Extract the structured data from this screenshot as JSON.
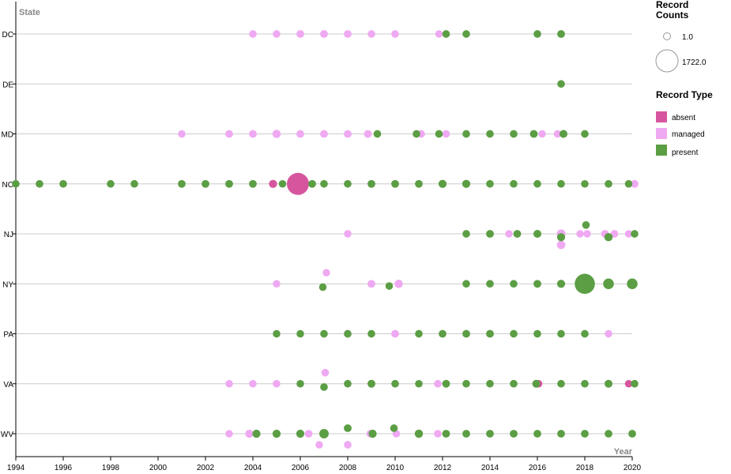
{
  "chart_data": {
    "type": "scatter",
    "x_axis_title": "Year",
    "y_axis_title": "State",
    "xlim": [
      1994,
      2020
    ],
    "x_ticks": [
      "1994",
      "1996",
      "1998",
      "2000",
      "2002",
      "2004",
      "2006",
      "2008",
      "2010",
      "2012",
      "2014",
      "2016",
      "2018",
      "2020"
    ],
    "categories": [
      "DC",
      "DE",
      "MD",
      "NC",
      "NJ",
      "NY",
      "PA",
      "VA",
      "WV"
    ],
    "size_legend": {
      "title": "Record Counts",
      "entries": [
        {
          "label": "1.0",
          "value": 1
        },
        {
          "label": "1722.0",
          "value": 1722
        }
      ]
    },
    "color_legend": {
      "title": "Record Type",
      "entries": [
        {
          "label": "absent",
          "color": "#d6569e"
        },
        {
          "label": "managed",
          "color": "#efa9f2"
        },
        {
          "label": "present",
          "color": "#5b9e44"
        }
      ]
    },
    "series": [
      {
        "name": "absent",
        "color": "#d6569e",
        "points": [
          {
            "x": 2004.85,
            "y": "NC",
            "count": 60
          },
          {
            "x": 2005.9,
            "y": "NC",
            "count": 1722
          },
          {
            "x": 2016.05,
            "y": "VA",
            "count": 25
          },
          {
            "x": 2019.85,
            "y": "VA",
            "count": 25
          }
        ]
      },
      {
        "name": "managed",
        "color": "#efa9f2",
        "points": [
          {
            "x": 2004,
            "y": "DC",
            "count": 30
          },
          {
            "x": 2005,
            "y": "DC",
            "count": 30
          },
          {
            "x": 2006,
            "y": "DC",
            "count": 40
          },
          {
            "x": 2007,
            "y": "DC",
            "count": 40
          },
          {
            "x": 2008,
            "y": "DC",
            "count": 40
          },
          {
            "x": 2009,
            "y": "DC",
            "count": 30
          },
          {
            "x": 2010,
            "y": "DC",
            "count": 30
          },
          {
            "x": 2011.85,
            "y": "DC",
            "count": 20
          },
          {
            "x": 2001,
            "y": "MD",
            "count": 25
          },
          {
            "x": 2003,
            "y": "MD",
            "count": 40
          },
          {
            "x": 2004,
            "y": "MD",
            "count": 40
          },
          {
            "x": 2005,
            "y": "MD",
            "count": 70
          },
          {
            "x": 2006,
            "y": "MD",
            "count": 40
          },
          {
            "x": 2007,
            "y": "MD",
            "count": 40
          },
          {
            "x": 2008,
            "y": "MD",
            "count": 40
          },
          {
            "x": 2008.85,
            "y": "MD",
            "count": 40
          },
          {
            "x": 2011.1,
            "y": "MD",
            "count": 30
          },
          {
            "x": 2012.15,
            "y": "MD",
            "count": 30
          },
          {
            "x": 2016.2,
            "y": "MD",
            "count": 20
          },
          {
            "x": 2016.85,
            "y": "MD",
            "count": 20
          },
          {
            "x": 2020.1,
            "y": "NC",
            "count": 35
          },
          {
            "x": 2008,
            "y": "NJ",
            "count": 25
          },
          {
            "x": 2014.8,
            "y": "NJ",
            "count": 20
          },
          {
            "x": 2017,
            "y": "NJ",
            "count": 110
          },
          {
            "x": 2017,
            "y": "NJ",
            "count": 85,
            "offset": 1
          },
          {
            "x": 2017.8,
            "y": "NJ",
            "count": 20
          },
          {
            "x": 2018.1,
            "y": "NJ",
            "count": 20
          },
          {
            "x": 2018.85,
            "y": "NJ",
            "count": 40
          },
          {
            "x": 2019.25,
            "y": "NJ",
            "count": 30
          },
          {
            "x": 2019.85,
            "y": "NJ",
            "count": 25
          },
          {
            "x": 2005,
            "y": "NY",
            "count": 25
          },
          {
            "x": 2007.1,
            "y": "NY",
            "count": 20,
            "offset": -1
          },
          {
            "x": 2009,
            "y": "NY",
            "count": 40
          },
          {
            "x": 2010.15,
            "y": "NY",
            "count": 70
          },
          {
            "x": 2008,
            "y": "PA",
            "count": 35
          },
          {
            "x": 2010,
            "y": "PA",
            "count": 35
          },
          {
            "x": 2019,
            "y": "PA",
            "count": 25
          },
          {
            "x": 2003,
            "y": "VA",
            "count": 25
          },
          {
            "x": 2004,
            "y": "VA",
            "count": 25
          },
          {
            "x": 2005,
            "y": "VA",
            "count": 30
          },
          {
            "x": 2007.05,
            "y": "VA",
            "count": 30,
            "offset": -1
          },
          {
            "x": 2011.8,
            "y": "VA",
            "count": 30
          },
          {
            "x": 2003,
            "y": "WV",
            "count": 25
          },
          {
            "x": 2003.85,
            "y": "WV",
            "count": 60
          },
          {
            "x": 2006.35,
            "y": "WV",
            "count": 40
          },
          {
            "x": 2006.8,
            "y": "WV",
            "count": 20,
            "offset": 1
          },
          {
            "x": 2008.95,
            "y": "WV",
            "count": 30
          },
          {
            "x": 2008,
            "y": "WV",
            "count": 30,
            "offset": 1
          },
          {
            "x": 2010.05,
            "y": "WV",
            "count": 25
          },
          {
            "x": 2011.8,
            "y": "WV",
            "count": 25
          }
        ]
      },
      {
        "name": "present",
        "color": "#5b9e44",
        "points": [
          {
            "x": 2012.15,
            "y": "DC",
            "count": 30
          },
          {
            "x": 2013,
            "y": "DC",
            "count": 30
          },
          {
            "x": 2016,
            "y": "DC",
            "count": 30
          },
          {
            "x": 2017,
            "y": "DC",
            "count": 40
          },
          {
            "x": 2017,
            "y": "DE",
            "count": 30
          },
          {
            "x": 2009.25,
            "y": "MD",
            "count": 30
          },
          {
            "x": 2010.9,
            "y": "MD",
            "count": 30
          },
          {
            "x": 2011.85,
            "y": "MD",
            "count": 30
          },
          {
            "x": 2013,
            "y": "MD",
            "count": 30
          },
          {
            "x": 2014,
            "y": "MD",
            "count": 30
          },
          {
            "x": 2015,
            "y": "MD",
            "count": 30
          },
          {
            "x": 2015.85,
            "y": "MD",
            "count": 40
          },
          {
            "x": 2017.1,
            "y": "MD",
            "count": 50
          },
          {
            "x": 2018,
            "y": "MD",
            "count": 30
          },
          {
            "x": 1994,
            "y": "NC",
            "count": 30
          },
          {
            "x": 1995,
            "y": "NC",
            "count": 30
          },
          {
            "x": 1996,
            "y": "NC",
            "count": 30
          },
          {
            "x": 1998,
            "y": "NC",
            "count": 30
          },
          {
            "x": 1999,
            "y": "NC",
            "count": 30
          },
          {
            "x": 2001,
            "y": "NC",
            "count": 35
          },
          {
            "x": 2002,
            "y": "NC",
            "count": 40
          },
          {
            "x": 2003,
            "y": "NC",
            "count": 40
          },
          {
            "x": 2004,
            "y": "NC",
            "count": 35
          },
          {
            "x": 2005.25,
            "y": "NC",
            "count": 25
          },
          {
            "x": 2006.5,
            "y": "NC",
            "count": 40
          },
          {
            "x": 2007,
            "y": "NC",
            "count": 30
          },
          {
            "x": 2008,
            "y": "NC",
            "count": 30
          },
          {
            "x": 2009,
            "y": "NC",
            "count": 40
          },
          {
            "x": 2010,
            "y": "NC",
            "count": 40
          },
          {
            "x": 2011,
            "y": "NC",
            "count": 35
          },
          {
            "x": 2012,
            "y": "NC",
            "count": 60
          },
          {
            "x": 2013,
            "y": "NC",
            "count": 60
          },
          {
            "x": 2014,
            "y": "NC",
            "count": 30
          },
          {
            "x": 2015,
            "y": "NC",
            "count": 30
          },
          {
            "x": 2016,
            "y": "NC",
            "count": 30
          },
          {
            "x": 2017,
            "y": "NC",
            "count": 30
          },
          {
            "x": 2018,
            "y": "NC",
            "count": 25
          },
          {
            "x": 2019,
            "y": "NC",
            "count": 30
          },
          {
            "x": 2019.85,
            "y": "NC",
            "count": 30
          },
          {
            "x": 2013,
            "y": "NJ",
            "count": 30
          },
          {
            "x": 2014,
            "y": "NJ",
            "count": 40
          },
          {
            "x": 2015.15,
            "y": "NJ",
            "count": 40
          },
          {
            "x": 2016,
            "y": "NJ",
            "count": 50
          },
          {
            "x": 2017,
            "y": "NJ",
            "count": 60,
            "offset": 0.3
          },
          {
            "x": 2018.05,
            "y": "NJ",
            "count": 30,
            "offset": -0.8
          },
          {
            "x": 2019,
            "y": "NJ",
            "count": 70,
            "offset": 0.3
          },
          {
            "x": 2020.1,
            "y": "NJ",
            "count": 30
          },
          {
            "x": 2006.95,
            "y": "NY",
            "count": 25,
            "offset": 0.3
          },
          {
            "x": 2009.75,
            "y": "NY",
            "count": 25,
            "offset": 0.2
          },
          {
            "x": 2013,
            "y": "NY",
            "count": 30
          },
          {
            "x": 2014,
            "y": "NY",
            "count": 30
          },
          {
            "x": 2015,
            "y": "NY",
            "count": 30
          },
          {
            "x": 2016,
            "y": "NY",
            "count": 40
          },
          {
            "x": 2017,
            "y": "NY",
            "count": 60
          },
          {
            "x": 2018,
            "y": "NY",
            "count": 1400
          },
          {
            "x": 2019,
            "y": "NY",
            "count": 250
          },
          {
            "x": 2020,
            "y": "NY",
            "count": 250
          },
          {
            "x": 2005,
            "y": "PA",
            "count": 25
          },
          {
            "x": 2006,
            "y": "PA",
            "count": 25
          },
          {
            "x": 2007,
            "y": "PA",
            "count": 30
          },
          {
            "x": 2008,
            "y": "PA",
            "count": 30
          },
          {
            "x": 2009,
            "y": "PA",
            "count": 30
          },
          {
            "x": 2011,
            "y": "PA",
            "count": 30
          },
          {
            "x": 2012,
            "y": "PA",
            "count": 35
          },
          {
            "x": 2013,
            "y": "PA",
            "count": 40
          },
          {
            "x": 2014,
            "y": "PA",
            "count": 40
          },
          {
            "x": 2015,
            "y": "PA",
            "count": 30
          },
          {
            "x": 2016,
            "y": "PA",
            "count": 30
          },
          {
            "x": 2017,
            "y": "PA",
            "count": 30
          },
          {
            "x": 2018,
            "y": "PA",
            "count": 30
          },
          {
            "x": 2006,
            "y": "VA",
            "count": 25
          },
          {
            "x": 2007,
            "y": "VA",
            "count": 30,
            "offset": 0.3
          },
          {
            "x": 2008,
            "y": "VA",
            "count": 30
          },
          {
            "x": 2009,
            "y": "VA",
            "count": 45
          },
          {
            "x": 2010,
            "y": "VA",
            "count": 30
          },
          {
            "x": 2011,
            "y": "VA",
            "count": 25
          },
          {
            "x": 2012.15,
            "y": "VA",
            "count": 40
          },
          {
            "x": 2013,
            "y": "VA",
            "count": 30
          },
          {
            "x": 2014,
            "y": "VA",
            "count": 30
          },
          {
            "x": 2015,
            "y": "VA",
            "count": 30
          },
          {
            "x": 2015.95,
            "y": "VA",
            "count": 45
          },
          {
            "x": 2017,
            "y": "VA",
            "count": 30
          },
          {
            "x": 2018,
            "y": "VA",
            "count": 30
          },
          {
            "x": 2019,
            "y": "VA",
            "count": 50
          },
          {
            "x": 2020.1,
            "y": "VA",
            "count": 30
          },
          {
            "x": 2004.15,
            "y": "WV",
            "count": 60
          },
          {
            "x": 2005,
            "y": "WV",
            "count": 60
          },
          {
            "x": 2006,
            "y": "WV",
            "count": 60
          },
          {
            "x": 2007,
            "y": "WV",
            "count": 150
          },
          {
            "x": 2008,
            "y": "WV",
            "count": 40,
            "offset": -0.5
          },
          {
            "x": 2009.05,
            "y": "WV",
            "count": 60
          },
          {
            "x": 2009.95,
            "y": "WV",
            "count": 30,
            "offset": -0.5
          },
          {
            "x": 2011,
            "y": "WV",
            "count": 70
          },
          {
            "x": 2012.15,
            "y": "WV",
            "count": 40
          },
          {
            "x": 2013,
            "y": "WV",
            "count": 35
          },
          {
            "x": 2014,
            "y": "WV",
            "count": 35
          },
          {
            "x": 2015,
            "y": "WV",
            "count": 40
          },
          {
            "x": 2016,
            "y": "WV",
            "count": 35
          },
          {
            "x": 2017,
            "y": "WV",
            "count": 35
          },
          {
            "x": 2018,
            "y": "WV",
            "count": 35
          },
          {
            "x": 2019,
            "y": "WV",
            "count": 35
          },
          {
            "x": 2020,
            "y": "WV",
            "count": 35
          }
        ]
      }
    ]
  }
}
